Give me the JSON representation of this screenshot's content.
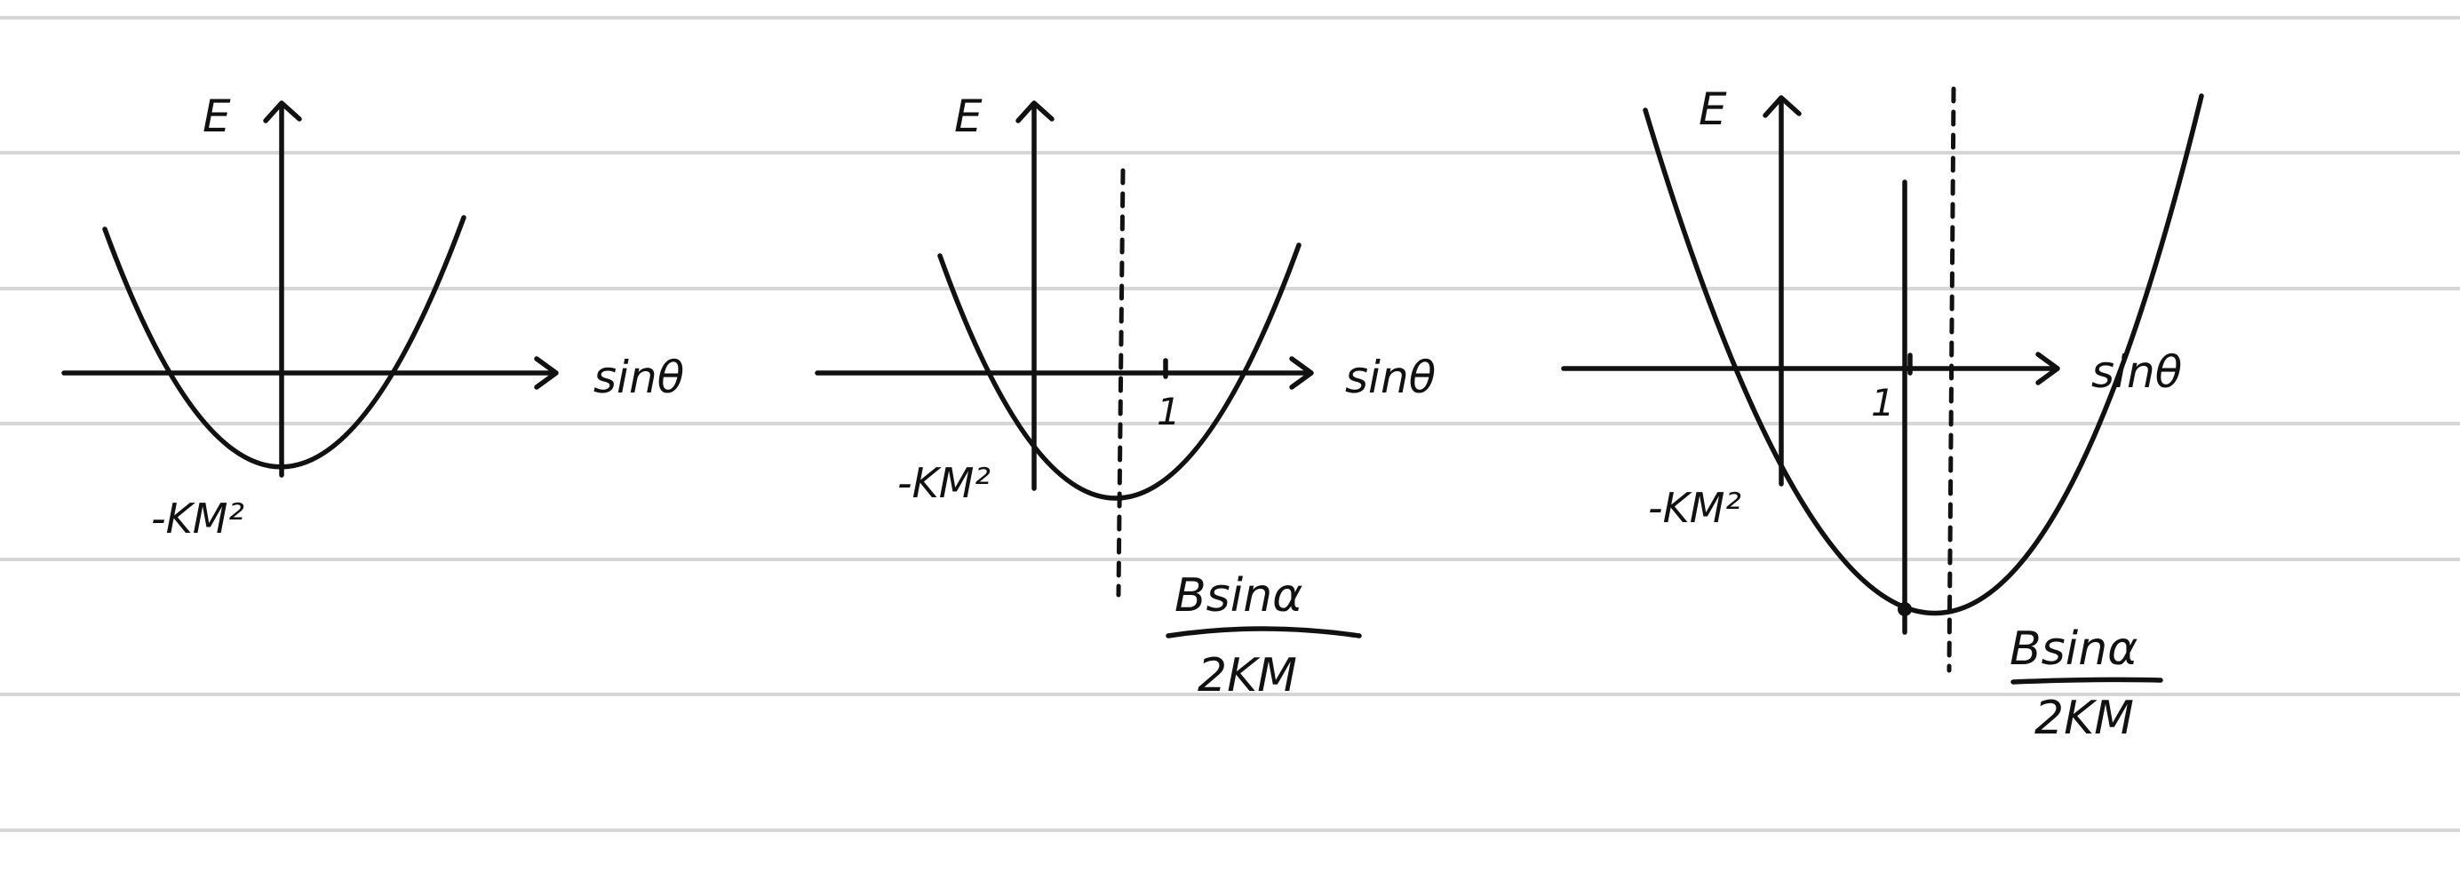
{
  "diagrams": [
    {
      "y_axis_label": "E",
      "x_axis_label": "sinθ",
      "minimum_label": "-KM²"
    },
    {
      "y_axis_label": "E",
      "x_axis_label": "sinθ",
      "minimum_label": "-KM²",
      "tick_label": "1",
      "vertex_numerator": "Bsinα",
      "vertex_denominator": "2KM"
    },
    {
      "y_axis_label": "E",
      "x_axis_label": "sinθ",
      "minimum_label": "-KM²",
      "tick_label": "1",
      "vertex_numerator": "Bsinα",
      "vertex_denominator": "2KM"
    }
  ]
}
